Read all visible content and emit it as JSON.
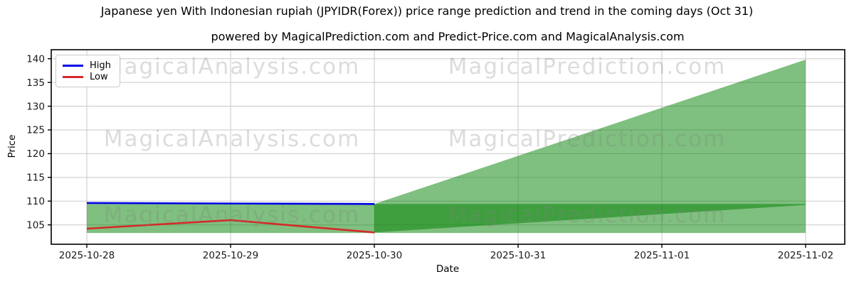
{
  "chart_data": {
    "type": "line",
    "title": "Japanese yen With Indonesian rupiah (JPYIDR(Forex)) price range prediction and trend in the coming days (Oct 31)",
    "subtitle": "powered by MagicalPrediction.com and Predict-Price.com and MagicalAnalysis.com",
    "xlabel": "Date",
    "ylabel": "Price",
    "x_categories": [
      "2025-10-28",
      "2025-10-29",
      "2025-10-30",
      "2025-10-31",
      "2025-11-01",
      "2025-11-02"
    ],
    "y_ticks": [
      105,
      110,
      115,
      120,
      125,
      130,
      135,
      140
    ],
    "ylim": [
      100.9,
      141.9
    ],
    "grid": true,
    "legend_position": "upper-left",
    "series": [
      {
        "name": "High",
        "color": "#0000e6",
        "x": [
          "2025-10-28",
          "2025-10-29",
          "2025-10-30"
        ],
        "values": [
          109.6,
          109.5,
          109.4
        ]
      },
      {
        "name": "Low",
        "color": "#d62828",
        "x": [
          "2025-10-28",
          "2025-10-29",
          "2025-10-30"
        ],
        "values": [
          104.2,
          106.0,
          103.4
        ]
      }
    ],
    "bands": [
      {
        "name": "range-band",
        "color": "#008000",
        "alpha": 0.5,
        "x": [
          "2025-10-28",
          "2025-11-02"
        ],
        "top": [
          109.4,
          109.4
        ],
        "bottom": [
          103.3,
          103.3
        ]
      },
      {
        "name": "prediction-fan",
        "color": "#008000",
        "alpha": 0.5,
        "x": [
          "2025-10-30",
          "2025-11-02"
        ],
        "top": [
          109.4,
          139.8
        ],
        "bottom": [
          103.4,
          109.2
        ]
      }
    ],
    "legend": {
      "entries": [
        {
          "label": "High",
          "color": "#0000e6"
        },
        {
          "label": "Low",
          "color": "#d62828"
        }
      ]
    },
    "watermark": {
      "left": "MagicalAnalysis.com",
      "right": "MagicalPrediction.com"
    },
    "colors": {
      "grid": "#c9c9c9",
      "spine": "#000000",
      "tick_label": "#1a1a1a"
    }
  }
}
